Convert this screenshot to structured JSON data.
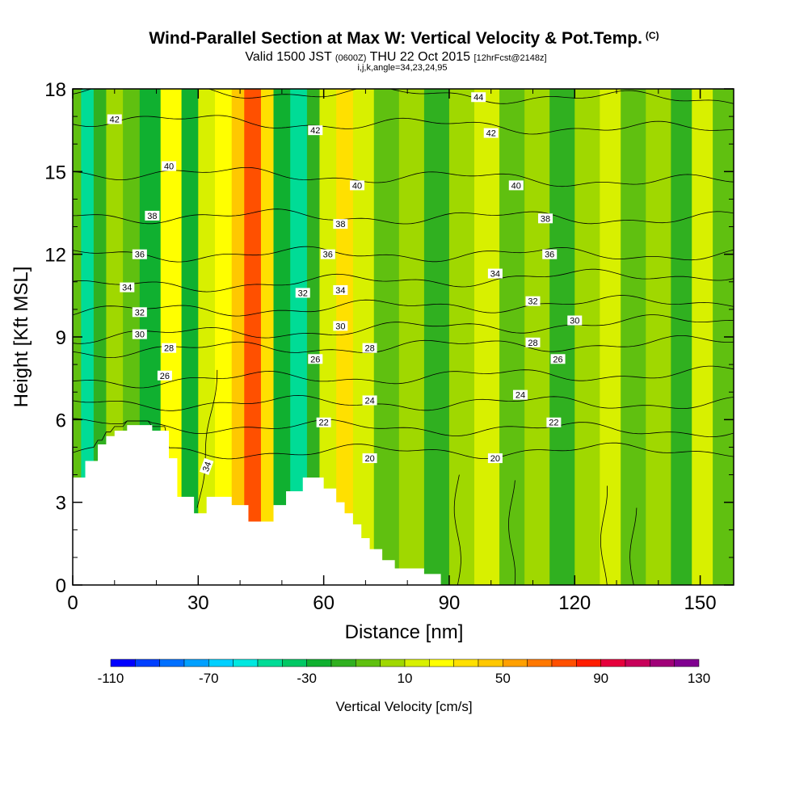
{
  "header": {
    "title_main": "Wind-Parallel Section at Max W: Vertical Velocity & Pot.Temp.",
    "copyright": "(C)",
    "valid_prefix": "Valid 1500 JST",
    "valid_z": "(0600Z)",
    "valid_date": "THU 22 Oct 2015",
    "forecast": "[12hrFcst@2148z]",
    "indices": "i,j,k,angle=34,23,24,95"
  },
  "chart_data": {
    "type": "heatmap",
    "xlabel": "Distance [nm]",
    "ylabel": "Height [Kft MSL]",
    "xlim": [
      0,
      158
    ],
    "ylim": [
      0,
      18
    ],
    "x_ticks": [
      "0",
      "30",
      "60",
      "90",
      "120",
      "150"
    ],
    "y_ticks": [
      "0",
      "3",
      "6",
      "9",
      "12",
      "15",
      "18"
    ],
    "x_tick_values": [
      0,
      30,
      60,
      90,
      120,
      150
    ],
    "y_tick_values": [
      0,
      3,
      6,
      9,
      12,
      15,
      18
    ],
    "terrain": [
      [
        0,
        3.9
      ],
      [
        3,
        3.9
      ],
      [
        3,
        4.5
      ],
      [
        6,
        4.5
      ],
      [
        6,
        5.1
      ],
      [
        8,
        5.1
      ],
      [
        8,
        5.4
      ],
      [
        10,
        5.4
      ],
      [
        10,
        5.6
      ],
      [
        13,
        5.6
      ],
      [
        13,
        5.8
      ],
      [
        19,
        5.8
      ],
      [
        19,
        5.6
      ],
      [
        23,
        5.6
      ],
      [
        23,
        4.6
      ],
      [
        25,
        4.6
      ],
      [
        25,
        3.2
      ],
      [
        29,
        3.2
      ],
      [
        29,
        2.6
      ],
      [
        32,
        2.6
      ],
      [
        32,
        3.2
      ],
      [
        38,
        3.2
      ],
      [
        38,
        2.9
      ],
      [
        42,
        2.9
      ],
      [
        42,
        2.3
      ],
      [
        48,
        2.3
      ],
      [
        48,
        2.9
      ],
      [
        51,
        2.9
      ],
      [
        51,
        3.4
      ],
      [
        55,
        3.4
      ],
      [
        55,
        3.9
      ],
      [
        60,
        3.9
      ],
      [
        60,
        3.5
      ],
      [
        63,
        3.5
      ],
      [
        63,
        3.0
      ],
      [
        65,
        3.0
      ],
      [
        65,
        2.6
      ],
      [
        67,
        2.6
      ],
      [
        67,
        2.2
      ],
      [
        69,
        2.2
      ],
      [
        69,
        1.7
      ],
      [
        71,
        1.7
      ],
      [
        71,
        1.3
      ],
      [
        74,
        1.3
      ],
      [
        74,
        0.9
      ],
      [
        77,
        0.9
      ],
      [
        77,
        0.6
      ],
      [
        84,
        0.6
      ],
      [
        84,
        0.4
      ],
      [
        88,
        0.4
      ],
      [
        88,
        0
      ]
    ],
    "vertical_velocity_bands": [
      {
        "x": 0,
        "w": 2,
        "v": -10
      },
      {
        "x": 2,
        "w": 3,
        "v": -45
      },
      {
        "x": 5,
        "w": 3,
        "v": -20
      },
      {
        "x": 8,
        "w": 4,
        "v": 0
      },
      {
        "x": 12,
        "w": 4,
        "v": -10
      },
      {
        "x": 16,
        "w": 5,
        "v": -30
      },
      {
        "x": 21,
        "w": 5,
        "v": 25
      },
      {
        "x": 26,
        "w": 4,
        "v": -30
      },
      {
        "x": 30,
        "w": 4,
        "v": 10
      },
      {
        "x": 34,
        "w": 4,
        "v": 20
      },
      {
        "x": 38,
        "w": 3,
        "v": 40
      },
      {
        "x": 41,
        "w": 4,
        "v": 70
      },
      {
        "x": 45,
        "w": 3,
        "v": 35
      },
      {
        "x": 48,
        "w": 4,
        "v": -30
      },
      {
        "x": 52,
        "w": 4,
        "v": -50
      },
      {
        "x": 56,
        "w": 3,
        "v": -20
      },
      {
        "x": 59,
        "w": 4,
        "v": 10
      },
      {
        "x": 63,
        "w": 4,
        "v": 30
      },
      {
        "x": 67,
        "w": 5,
        "v": 10
      },
      {
        "x": 72,
        "w": 6,
        "v": -10
      },
      {
        "x": 78,
        "w": 6,
        "v": 5
      },
      {
        "x": 84,
        "w": 6,
        "v": -20
      },
      {
        "x": 90,
        "w": 6,
        "v": 0
      },
      {
        "x": 96,
        "w": 6,
        "v": 10
      },
      {
        "x": 102,
        "w": 6,
        "v": -10
      },
      {
        "x": 108,
        "w": 6,
        "v": 5
      },
      {
        "x": 114,
        "w": 6,
        "v": -20
      },
      {
        "x": 120,
        "w": 6,
        "v": 0
      },
      {
        "x": 126,
        "w": 5,
        "v": 15
      },
      {
        "x": 131,
        "w": 6,
        "v": -10
      },
      {
        "x": 137,
        "w": 6,
        "v": 5
      },
      {
        "x": 143,
        "w": 5,
        "v": -20
      },
      {
        "x": 148,
        "w": 5,
        "v": 10
      },
      {
        "x": 153,
        "w": 5,
        "v": -10
      }
    ],
    "theta_contours": [
      {
        "label": "20",
        "y_left": 4.8,
        "y_right": 4.9,
        "label_at": [
          [
            71,
            4.6
          ],
          [
            101,
            4.6
          ]
        ]
      },
      {
        "label": "22",
        "y_left": 5.8,
        "y_right": 5.6,
        "label_at": [
          [
            60,
            5.9
          ],
          [
            115,
            5.9
          ]
        ]
      },
      {
        "label": "24",
        "y_left": 6.6,
        "y_right": 6.6,
        "label_at": [
          [
            71,
            6.7
          ],
          [
            107,
            6.9
          ]
        ]
      },
      {
        "label": "26",
        "y_left": 7.4,
        "y_right": 7.7,
        "label_at": [
          [
            22,
            7.6
          ],
          [
            58,
            8.2
          ],
          [
            116,
            8.2
          ]
        ]
      },
      {
        "label": "28",
        "y_left": 8.5,
        "y_right": 8.8,
        "label_at": [
          [
            23,
            8.6
          ],
          [
            71,
            8.6
          ],
          [
            110,
            8.8
          ]
        ]
      },
      {
        "label": "30",
        "y_left": 9.0,
        "y_right": 9.6,
        "label_at": [
          [
            16,
            9.1
          ],
          [
            64,
            9.4
          ],
          [
            120,
            9.6
          ]
        ]
      },
      {
        "label": "32",
        "y_left": 9.9,
        "y_right": 10.3,
        "label_at": [
          [
            16,
            9.9
          ],
          [
            55,
            10.6
          ],
          [
            110,
            10.3
          ]
        ]
      },
      {
        "label": "34",
        "y_left": 10.8,
        "y_right": 11.3,
        "label_at": [
          [
            13,
            10.8
          ],
          [
            64,
            10.7
          ],
          [
            101,
            11.3
          ]
        ]
      },
      {
        "label": "36",
        "y_left": 12.0,
        "y_right": 12.0,
        "label_at": [
          [
            16,
            12.0
          ],
          [
            61,
            12.0
          ],
          [
            114,
            12.0
          ]
        ]
      },
      {
        "label": "38",
        "y_left": 13.4,
        "y_right": 13.3,
        "label_at": [
          [
            19,
            13.4
          ],
          [
            64,
            13.1
          ],
          [
            113,
            13.3
          ]
        ]
      },
      {
        "label": "40",
        "y_left": 15.0,
        "y_right": 14.6,
        "label_at": [
          [
            23,
            15.2
          ],
          [
            68,
            14.5
          ],
          [
            106,
            14.5
          ]
        ]
      },
      {
        "label": "42",
        "y_left": 16.9,
        "y_right": 16.5,
        "label_at": [
          [
            10,
            16.9
          ],
          [
            58,
            16.5
          ],
          [
            100,
            16.4
          ]
        ]
      },
      {
        "label": "44",
        "y_left": 18.0,
        "y_right": 17.6,
        "label_at": [
          [
            97,
            17.7
          ]
        ]
      }
    ],
    "extra_contour_labels": [
      {
        "label": "34",
        "x": 32,
        "y": 4.3,
        "rotate": -70
      }
    ],
    "colorbar": {
      "title": "Vertical Velocity [cm/s]",
      "min": -110,
      "max": 130,
      "step": 10,
      "tick_labels": [
        "-110",
        "-70",
        "-30",
        "10",
        "50",
        "90",
        "130"
      ],
      "tick_values": [
        -110,
        -70,
        -30,
        10,
        50,
        90,
        130
      ],
      "colors": [
        "#0000ff",
        "#0040ff",
        "#0070ff",
        "#00a0ff",
        "#00d0ff",
        "#00e8e0",
        "#00dc96",
        "#00c864",
        "#10b030",
        "#30b020",
        "#60c010",
        "#a0d800",
        "#d8f000",
        "#ffff00",
        "#ffe000",
        "#ffc800",
        "#ffa000",
        "#ff7800",
        "#ff5000",
        "#ff1e00",
        "#e6003c",
        "#c8005a",
        "#a00078",
        "#800090"
      ]
    }
  }
}
